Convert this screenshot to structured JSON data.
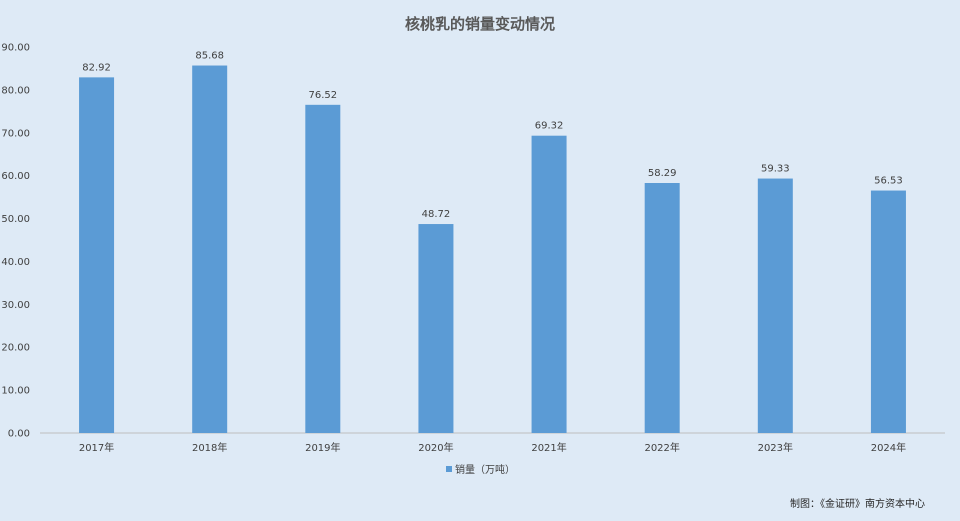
{
  "chart_data": {
    "type": "bar",
    "title": "核桃乳的销量变动情况",
    "categories": [
      "2017年",
      "2018年",
      "2019年",
      "2020年",
      "2021年",
      "2022年",
      "2023年",
      "2024年"
    ],
    "series": [
      {
        "name": "销量（万吨）",
        "values": [
          82.92,
          85.68,
          76.52,
          48.72,
          69.32,
          58.29,
          59.33,
          56.53
        ],
        "labels": [
          "82.92",
          "85.68",
          "76.52",
          "48.72",
          "69.32",
          "58.29",
          "59.33",
          "56.53"
        ],
        "color": "#5b9bd5"
      }
    ],
    "ylim": [
      0,
      90
    ],
    "yticks": [
      "0.00",
      "10.00",
      "20.00",
      "30.00",
      "40.00",
      "50.00",
      "60.00",
      "70.00",
      "80.00",
      "90.00"
    ],
    "xlabel": "",
    "ylabel": "",
    "grid": false,
    "legend": "bottom"
  },
  "source": "制图：《金证研》南方资本中心"
}
